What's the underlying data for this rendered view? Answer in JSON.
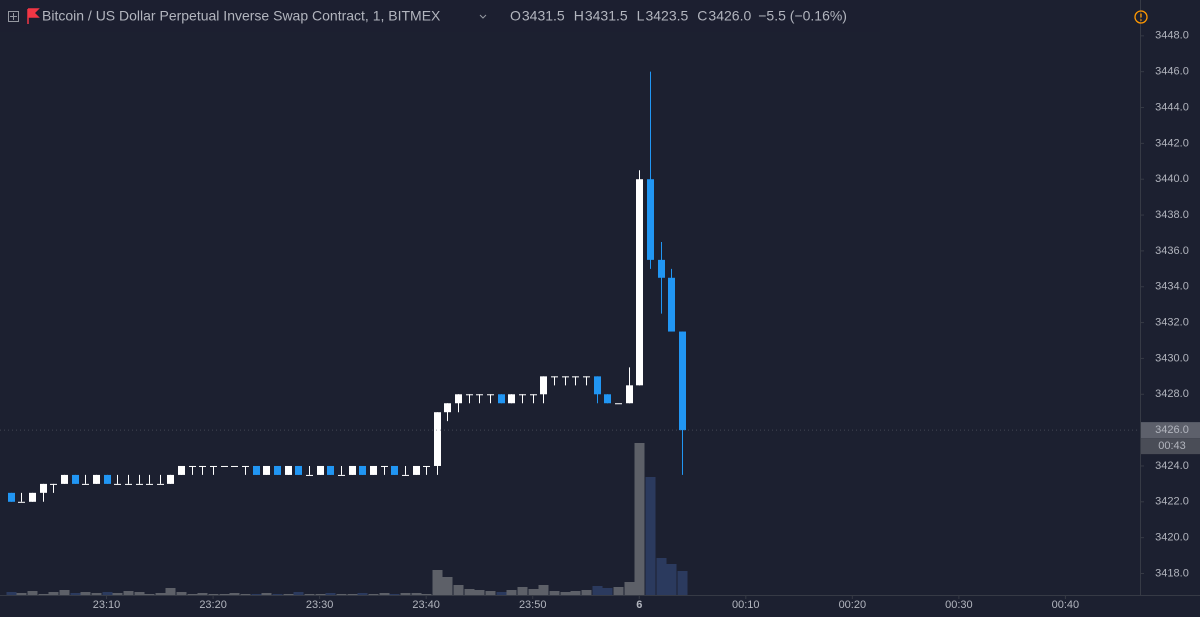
{
  "chart_data": {
    "type": "candlestick",
    "title": "Bitcoin / US Dollar Perpetual Inverse Swap Contract, 1, BITMEX",
    "ohlc": [
      {
        "label": "O",
        "value": "3431.5"
      },
      {
        "label": "H",
        "value": "3431.5"
      },
      {
        "label": "L",
        "value": "3423.5"
      },
      {
        "label": "C",
        "value": "3426.0"
      }
    ],
    "change": "−5.5 (−0.16%)",
    "x": [
      "23:01",
      "23:02",
      "23:03",
      "23:04",
      "23:05",
      "23:06",
      "23:07",
      "23:08",
      "23:09",
      "23:10",
      "23:11",
      "23:12",
      "23:13",
      "23:14",
      "23:15",
      "23:16",
      "23:17",
      "23:18",
      "23:19",
      "23:20",
      "23:21",
      "23:22",
      "23:23",
      "23:24",
      "23:25",
      "23:26",
      "23:27",
      "23:28",
      "23:29",
      "23:30",
      "23:31",
      "23:32",
      "23:33",
      "23:34",
      "23:35",
      "23:36",
      "23:37",
      "23:38",
      "23:39",
      "23:40",
      "23:41",
      "23:42",
      "23:43",
      "23:44",
      "23:45",
      "23:46",
      "23:47",
      "23:48",
      "23:49",
      "23:50",
      "23:51",
      "23:52",
      "23:53",
      "23:54",
      "23:55",
      "23:56",
      "23:57",
      "23:58",
      "23:59",
      "00:00",
      "00:01",
      "00:02",
      "00:03",
      "00:04"
    ],
    "open": [
      3422.5,
      3422,
      3422,
      3422.5,
      3423,
      3423,
      3423.5,
      3423,
      3423,
      3423.5,
      3423,
      3423,
      3423,
      3423,
      3423,
      3423,
      3423.5,
      3424,
      3424,
      3424,
      3424,
      3424,
      3424,
      3424,
      3423.5,
      3424,
      3423.5,
      3424,
      3423.5,
      3423.5,
      3424,
      3423.5,
      3423.5,
      3424,
      3423.5,
      3424,
      3424,
      3423.5,
      3423.5,
      3424,
      3424,
      3427,
      3427.5,
      3428,
      3428,
      3428,
      3428,
      3427.5,
      3428,
      3428,
      3428,
      3429,
      3429,
      3429,
      3429,
      3429,
      3428,
      3427.5,
      3427.5,
      3428.5,
      3440,
      3435.5,
      3434.5,
      3431.5
    ],
    "high": [
      3422.5,
      3422.5,
      3422.5,
      3423,
      3423,
      3423.5,
      3423.5,
      3423.5,
      3423.5,
      3423.5,
      3423.5,
      3423.5,
      3423.5,
      3423.5,
      3423.5,
      3423.5,
      3424,
      3424,
      3424,
      3424,
      3424,
      3424,
      3424,
      3424,
      3424,
      3424,
      3424,
      3424,
      3424,
      3424,
      3424,
      3424,
      3424,
      3424,
      3424,
      3424,
      3424,
      3424,
      3424,
      3424,
      3427,
      3427.5,
      3428,
      3428,
      3428,
      3428,
      3428,
      3428,
      3428,
      3428,
      3429,
      3429,
      3429,
      3429,
      3429,
      3429,
      3428,
      3427.5,
      3429.5,
      3440.5,
      3446,
      3436.5,
      3435,
      3431.5
    ],
    "low": [
      3422,
      3422,
      3422,
      3422,
      3422.5,
      3423,
      3423,
      3423,
      3423,
      3423,
      3423,
      3423,
      3423,
      3423,
      3423,
      3423,
      3423.5,
      3423.5,
      3423.5,
      3423.5,
      3424,
      3424,
      3423.5,
      3423.5,
      3423.5,
      3423.5,
      3423.5,
      3423.5,
      3423.5,
      3423.5,
      3423.5,
      3423.5,
      3423.5,
      3423.5,
      3423.5,
      3423.5,
      3423.5,
      3423.5,
      3423.5,
      3423.5,
      3423.5,
      3426.5,
      3427,
      3427.5,
      3427.5,
      3427.5,
      3427.5,
      3427.5,
      3427.5,
      3427.5,
      3427.5,
      3428.5,
      3428.5,
      3428.5,
      3428.5,
      3427.5,
      3427.5,
      3427.5,
      3427.5,
      3428.5,
      3435,
      3432.5,
      3431.5,
      3423.5
    ],
    "close": [
      3422,
      3422,
      3422.5,
      3423,
      3423,
      3423.5,
      3423,
      3423,
      3423.5,
      3423,
      3423,
      3423,
      3423,
      3423,
      3423,
      3423.5,
      3424,
      3424,
      3424,
      3424,
      3424,
      3424,
      3424,
      3423.5,
      3424,
      3423.5,
      3424,
      3423.5,
      3423.5,
      3424,
      3423.5,
      3423.5,
      3424,
      3423.5,
      3424,
      3424,
      3423.5,
      3423.5,
      3424,
      3424,
      3427,
      3427.5,
      3428,
      3428,
      3428,
      3428,
      3427.5,
      3428,
      3428,
      3428,
      3429,
      3429,
      3429,
      3429,
      3429,
      3428,
      3427.5,
      3427.5,
      3428.5,
      3440,
      3435.5,
      3434.5,
      3431.5,
      3426
    ],
    "volume": [
      3,
      2,
      4,
      1,
      3,
      5,
      2,
      3,
      2,
      3,
      2,
      4,
      3,
      1,
      2,
      7,
      3,
      1,
      2,
      1,
      1,
      2,
      1,
      1,
      2,
      1,
      1,
      3,
      1,
      1,
      2,
      1,
      1,
      2,
      1,
      2,
      1,
      2,
      2,
      1,
      25,
      18,
      10,
      6,
      5,
      4,
      3,
      5,
      8,
      6,
      10,
      4,
      3,
      4,
      5,
      9,
      7,
      8,
      13,
      152,
      118,
      37,
      31,
      24
    ],
    "up_color": "#ffffff",
    "down_color": "#2196f3",
    "volume_up_color": "#5d6068",
    "volume_down_color": "#2b3a5e",
    "vlim": [
      0,
      300
    ],
    "xlim": [
      "23:00",
      "00:47"
    ],
    "xticks": [
      "23:10",
      "23:20",
      "23:30",
      "23:40",
      "23:50",
      {
        "value": "00:00",
        "label": "6"
      },
      "00:10",
      "00:20",
      "00:30",
      "00:40"
    ],
    "ylim": [
      3416.8,
      3450
    ],
    "yticks": [
      {
        "value": 3418,
        "label": "3418.0"
      },
      {
        "value": 3420,
        "label": "3420.0"
      },
      {
        "value": 3422,
        "label": "3422.0"
      },
      {
        "value": 3424,
        "label": "3424.0"
      },
      {
        "value": 3426,
        "label": "3426.0"
      },
      {
        "value": 3428,
        "label": "3428.0"
      },
      {
        "value": 3430,
        "label": "3430.0"
      },
      {
        "value": 3432,
        "label": "3432.0"
      },
      {
        "value": 3434,
        "label": "3434.0"
      },
      {
        "value": 3436,
        "label": "3436.0"
      },
      {
        "value": 3438,
        "label": "3438.0"
      },
      {
        "value": 3440,
        "label": "3440.0"
      },
      {
        "value": 3442,
        "label": "3442.0"
      },
      {
        "value": 3444,
        "label": "3444.0"
      },
      {
        "value": 3446,
        "label": "3446.0"
      },
      {
        "value": 3448,
        "label": "3448.0"
      }
    ],
    "last_price": {
      "value": 3426,
      "label": "3426.0"
    },
    "countdown": "00:43",
    "grid": false
  }
}
